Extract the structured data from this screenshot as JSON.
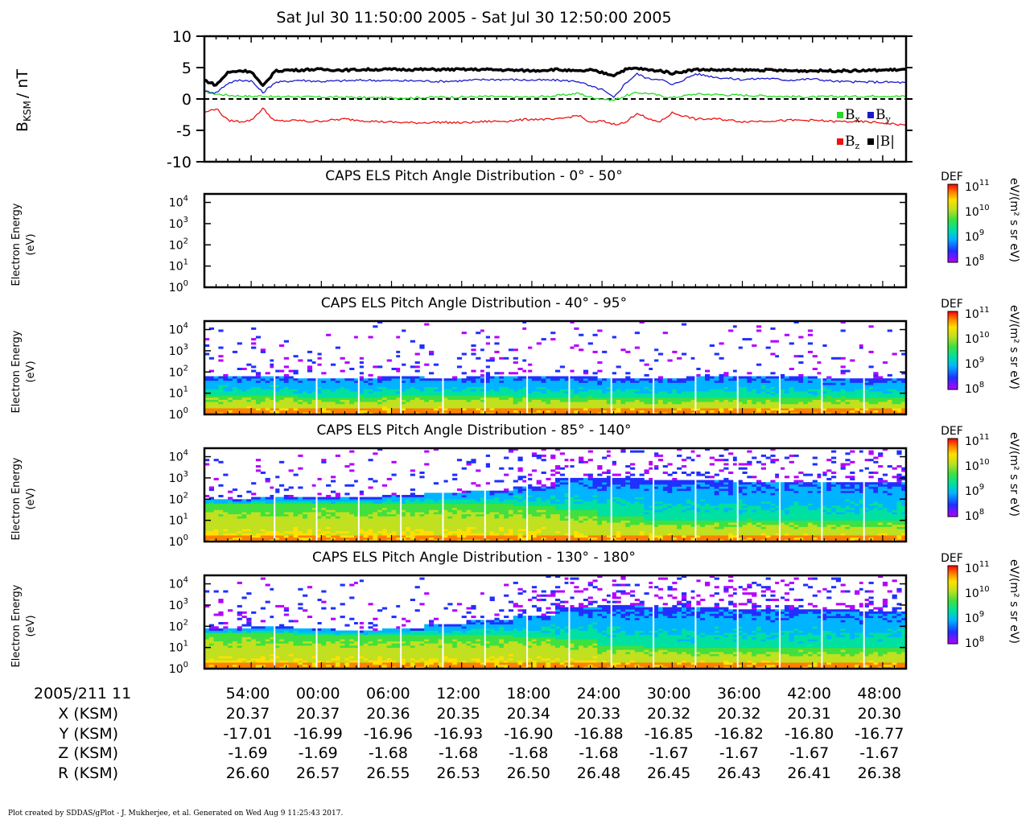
{
  "header": {
    "time_range": "Sat Jul 30 11:50:00 2005 - Sat Jul 30 12:50:00 2005"
  },
  "footer": {
    "credit": "Plot created by SDDAS/gPlot - J. Mukherjee, et al.  Generated on Wed Aug 9 11:25:43 2017."
  },
  "colors": {
    "bx": "#22dd22",
    "by": "#1a1acc",
    "bz": "#ee1111",
    "bmag": "#000000",
    "spectrogram_scale": [
      "#b400ff",
      "#2030ff",
      "#00b4ff",
      "#00e0a0",
      "#40e040",
      "#c0e020",
      "#ffe000",
      "#ff8000",
      "#ff0000"
    ]
  },
  "chart_data": [
    {
      "type": "line",
      "ylabel": "B",
      "ylabel_sub": "KSM",
      "ylabel_unit": "/ nT",
      "ylim": [
        -10,
        10
      ],
      "yticks": [
        "10",
        "5",
        "0",
        "-5",
        "-10"
      ],
      "zero_line": "dashed",
      "legend": [
        {
          "label": "B",
          "sub": "x",
          "color": "#22dd22"
        },
        {
          "label": "B",
          "sub": "y",
          "color": "#1a1acc"
        },
        {
          "label": "B",
          "sub": "z",
          "color": "#ee1111"
        },
        {
          "label": "|B|",
          "sub": "",
          "color": "#000000"
        }
      ],
      "x_minutes_from_start": [
        0,
        1,
        2,
        3,
        4,
        5,
        6,
        7,
        8,
        9,
        10,
        12,
        14,
        16,
        18,
        20,
        22,
        24,
        26,
        28,
        30,
        32,
        33,
        34,
        35,
        36,
        37,
        38,
        39,
        40,
        42,
        44,
        46,
        48,
        50,
        52,
        54,
        56,
        58,
        60
      ],
      "series": [
        {
          "name": "B",
          "sub": "x",
          "color": "#22dd22",
          "values": [
            1.2,
            0.8,
            0.6,
            0.5,
            0.4,
            0.5,
            0.3,
            0.4,
            0.4,
            0.3,
            0.3,
            0.3,
            0.2,
            0.2,
            0.2,
            0.3,
            0.3,
            0.4,
            0.3,
            0.3,
            0.5,
            0.9,
            0.3,
            0.0,
            -0.2,
            0.5,
            1.0,
            0.9,
            0.5,
            0.2,
            0.8,
            0.7,
            0.6,
            0.5,
            0.4,
            0.3,
            0.4,
            0.4,
            0.5,
            0.4
          ]
        },
        {
          "name": "B",
          "sub": "y",
          "color": "#1a1acc",
          "values": [
            1.2,
            1.0,
            2.5,
            3.0,
            2.9,
            1.0,
            2.6,
            2.8,
            3.0,
            2.9,
            2.8,
            2.9,
            3.0,
            2.9,
            2.9,
            2.8,
            2.9,
            3.1,
            3.1,
            3.0,
            3.0,
            2.8,
            2.0,
            1.5,
            0.2,
            2.5,
            4.0,
            3.2,
            3.2,
            2.2,
            4.0,
            3.4,
            3.1,
            3.3,
            3.0,
            3.2,
            2.8,
            2.7,
            2.7,
            2.6
          ]
        },
        {
          "name": "B",
          "sub": "z",
          "color": "#ee1111",
          "values": [
            -2.2,
            -1.5,
            -3.4,
            -3.6,
            -3.4,
            -1.5,
            -3.5,
            -3.5,
            -3.4,
            -3.6,
            -3.5,
            -3.2,
            -3.5,
            -3.7,
            -3.8,
            -3.7,
            -3.8,
            -3.6,
            -3.5,
            -3.2,
            -3.3,
            -2.6,
            -3.8,
            -3.5,
            -4.0,
            -3.8,
            -2.2,
            -3.3,
            -3.6,
            -2.2,
            -3.2,
            -3.2,
            -3.6,
            -3.5,
            -3.4,
            -3.4,
            -3.6,
            -3.6,
            -3.8,
            -4.2
          ]
        },
        {
          "name": "|B|",
          "sub": "",
          "color": "#000000",
          "values": [
            3.0,
            2.2,
            4.2,
            4.5,
            4.4,
            2.0,
            4.4,
            4.6,
            4.6,
            4.7,
            4.7,
            4.6,
            4.7,
            4.7,
            4.7,
            4.7,
            4.7,
            4.7,
            4.6,
            4.5,
            4.7,
            4.4,
            4.6,
            4.2,
            3.8,
            4.7,
            4.9,
            4.6,
            4.5,
            4.1,
            4.7,
            4.6,
            4.6,
            4.6,
            4.5,
            4.5,
            4.5,
            4.5,
            4.6,
            4.7
          ]
        }
      ]
    },
    {
      "type": "heatmap",
      "title": "CAPS ELS Pitch Angle Distribution - 0° - 50°",
      "ylabel": [
        "Electron Energy",
        "(eV)"
      ],
      "yscale": "log",
      "yticks_exp": [
        "4",
        "3",
        "2",
        "1",
        "0"
      ],
      "colorbar": {
        "title": "DEF",
        "unit": "eV/(m² s sr eV)",
        "exps": [
          "11",
          "10",
          "9",
          "8"
        ]
      },
      "empty": true
    },
    {
      "type": "heatmap",
      "title": "CAPS ELS Pitch Angle Distribution - 40° - 95°",
      "ylabel": [
        "Electron Energy",
        "(eV)"
      ],
      "yscale": "log",
      "yticks_exp": [
        "4",
        "3",
        "2",
        "1",
        "0"
      ],
      "colorbar": {
        "title": "DEF",
        "unit": "eV/(m² s sr eV)",
        "exps": [
          "11",
          "10",
          "9",
          "8"
        ]
      },
      "empty": false,
      "upper_energy_eV": [
        60,
        60,
        55,
        55,
        60,
        55,
        60,
        60,
        60,
        55,
        55,
        70,
        70,
        60,
        50,
        50
      ],
      "high_level_top_eV": [
        8,
        8,
        7,
        7,
        8,
        8,
        8,
        7,
        7,
        6,
        6,
        7,
        6,
        6,
        7,
        6
      ]
    },
    {
      "type": "heatmap",
      "title": "CAPS ELS Pitch Angle Distribution - 85° - 140°",
      "ylabel": [
        "Electron Energy",
        "(eV)"
      ],
      "yscale": "log",
      "yticks_exp": [
        "4",
        "3",
        "2",
        "1",
        "0"
      ],
      "colorbar": {
        "title": "DEF",
        "unit": "eV/(m² s sr eV)",
        "exps": [
          "11",
          "10",
          "9",
          "8"
        ]
      },
      "empty": false,
      "upper_energy_eV": [
        100,
        120,
        120,
        120,
        150,
        200,
        250,
        400,
        900,
        900,
        800,
        800,
        700,
        700,
        700,
        700
      ],
      "high_level_top_eV": [
        60,
        60,
        60,
        60,
        60,
        60,
        60,
        50,
        30,
        15,
        10,
        10,
        10,
        10,
        9,
        9
      ]
    },
    {
      "type": "heatmap",
      "title": "CAPS ELS Pitch Angle Distribution - 130° - 180°",
      "ylabel": [
        "Electron Energy",
        "(eV)"
      ],
      "yscale": "log",
      "yticks_exp": [
        "4",
        "3",
        "2",
        "1",
        "0"
      ],
      "colorbar": {
        "title": "DEF",
        "unit": "eV/(m² s sr eV)",
        "exps": [
          "11",
          "10",
          "9",
          "8"
        ]
      },
      "empty": false,
      "upper_energy_eV": [
        80,
        90,
        80,
        70,
        80,
        120,
        200,
        350,
        800,
        900,
        800,
        800,
        700,
        700,
        600,
        500
      ],
      "high_level_top_eV": [
        50,
        50,
        40,
        40,
        40,
        40,
        40,
        35,
        25,
        12,
        10,
        9,
        9,
        9,
        9,
        9
      ]
    }
  ],
  "time_axis": {
    "row_labels": [
      "2005/211 11",
      "X (KSM)",
      "Y (KSM)",
      "Z (KSM)",
      "R (KSM)"
    ],
    "columns": [
      {
        "time": "54:00",
        "x": "20.37",
        "y": "-17.01",
        "z": "-1.69",
        "r": "26.60"
      },
      {
        "time": "00:00",
        "x": "20.37",
        "y": "-16.99",
        "z": "-1.69",
        "r": "26.57"
      },
      {
        "time": "06:00",
        "x": "20.36",
        "y": "-16.96",
        "z": "-1.68",
        "r": "26.55"
      },
      {
        "time": "12:00",
        "x": "20.35",
        "y": "-16.93",
        "z": "-1.68",
        "r": "26.53"
      },
      {
        "time": "18:00",
        "x": "20.34",
        "y": "-16.90",
        "z": "-1.68",
        "r": "26.50"
      },
      {
        "time": "24:00",
        "x": "20.33",
        "y": "-16.88",
        "z": "-1.68",
        "r": "26.48"
      },
      {
        "time": "30:00",
        "x": "20.32",
        "y": "-16.85",
        "z": "-1.67",
        "r": "26.45"
      },
      {
        "time": "36:00",
        "x": "20.32",
        "y": "-16.82",
        "z": "-1.67",
        "r": "26.43"
      },
      {
        "time": "42:00",
        "x": "20.31",
        "y": "-16.80",
        "z": "-1.67",
        "r": "26.41"
      },
      {
        "time": "48:00",
        "x": "20.30",
        "y": "-16.77",
        "z": "-1.67",
        "r": "26.38"
      }
    ]
  }
}
